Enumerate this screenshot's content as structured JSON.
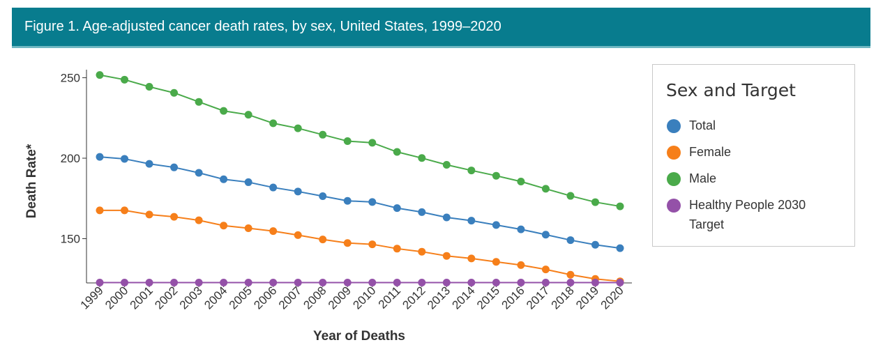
{
  "header": {
    "title": "Figure 1. Age-adjusted cancer death rates, by sex, United States, 1999–2020"
  },
  "legend": {
    "title": "Sex and Target"
  },
  "colors": {
    "header_bg": "#087c8e",
    "Total": "#3a7fbd",
    "Female": "#f67f1a",
    "Male": "#4aaa4a",
    "Healthy People 2030 Target": "#9451a8"
  },
  "chart_data": {
    "type": "line",
    "title": "Figure 1. Age-adjusted cancer death rates, by sex, United States, 1999–2020",
    "xlabel": "Year of Deaths",
    "ylabel": "Death Rate*",
    "ylim": [
      122.5,
      255
    ],
    "yticks": [
      150,
      200,
      250
    ],
    "grid": false,
    "legend_position": "right",
    "x": [
      "1999",
      "2000",
      "2001",
      "2002",
      "2003",
      "2004",
      "2005",
      "2006",
      "2007",
      "2008",
      "2009",
      "2010",
      "2011",
      "2012",
      "2013",
      "2014",
      "2015",
      "2016",
      "2017",
      "2018",
      "2019",
      "2020"
    ],
    "series": [
      {
        "name": "Total",
        "color": "#3a7fbd",
        "values": [
          200.8,
          199.6,
          196.5,
          194.3,
          190.9,
          186.9,
          185.1,
          181.8,
          179.3,
          176.4,
          173.5,
          172.8,
          169.0,
          166.5,
          163.2,
          161.2,
          158.5,
          155.8,
          152.5,
          149.1,
          146.2,
          144.1
        ]
      },
      {
        "name": "Female",
        "color": "#f67f1a",
        "values": [
          167.6,
          167.6,
          165.0,
          163.6,
          161.4,
          158.1,
          156.5,
          154.7,
          152.2,
          149.5,
          147.3,
          146.5,
          143.8,
          141.9,
          139.3,
          137.7,
          135.6,
          133.6,
          130.9,
          127.6,
          125.0,
          123.5
        ]
      },
      {
        "name": "Male",
        "color": "#4aaa4a",
        "values": [
          251.7,
          248.8,
          244.4,
          240.6,
          235.0,
          229.4,
          227.0,
          221.7,
          218.6,
          214.6,
          210.6,
          209.6,
          203.9,
          200.1,
          195.9,
          192.4,
          189.1,
          185.5,
          181.0,
          176.6,
          172.7,
          170.1
        ]
      },
      {
        "name": "Healthy People 2030 Target",
        "color": "#9451a8",
        "values": [
          122.7,
          122.7,
          122.7,
          122.7,
          122.7,
          122.7,
          122.7,
          122.7,
          122.7,
          122.7,
          122.7,
          122.7,
          122.7,
          122.7,
          122.7,
          122.7,
          122.7,
          122.7,
          122.7,
          122.7,
          122.7,
          122.7
        ]
      }
    ]
  }
}
